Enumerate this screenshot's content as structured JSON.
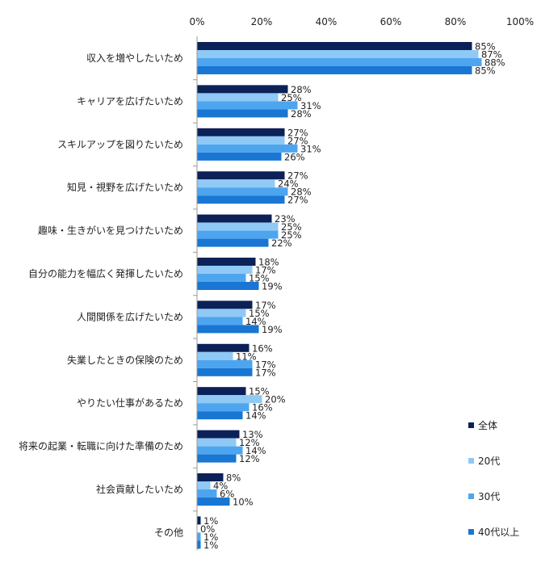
{
  "chart_data": {
    "type": "bar",
    "orientation": "horizontal",
    "title": "",
    "xlabel": "",
    "ylabel": "",
    "xlim": [
      0,
      100
    ],
    "x_ticks": [
      "0%",
      "20%",
      "40%",
      "60%",
      "80%",
      "100%"
    ],
    "x_tick_values": [
      0,
      20,
      40,
      60,
      80,
      100
    ],
    "value_suffix": "%",
    "grid": false,
    "legend_position": "bottom-right",
    "categories": [
      "収入を増やしたいため",
      "キャリアを広げたいため",
      "スキルアップを図りたいため",
      "知見・視野を広げたいため",
      "趣味・生きがいを見つけたいため",
      "自分の能力を幅広く発揮したいため",
      "人間関係を広げたいため",
      "失業したときの保険のため",
      "やりたい仕事があるため",
      "将来の起業・転職に向けた準備のため",
      "社会貢献したいため",
      "その他"
    ],
    "series": [
      {
        "name": "全体",
        "color": "#0b2157",
        "values": [
          85,
          28,
          27,
          27,
          23,
          18,
          17,
          16,
          15,
          13,
          8,
          1
        ]
      },
      {
        "name": "20代",
        "color": "#8fc9f5",
        "values": [
          87,
          25,
          27,
          24,
          25,
          17,
          15,
          11,
          20,
          12,
          4,
          0
        ]
      },
      {
        "name": "30代",
        "color": "#4ea5ef",
        "values": [
          88,
          31,
          31,
          28,
          25,
          15,
          14,
          17,
          16,
          14,
          6,
          1
        ]
      },
      {
        "name": "40代以上",
        "color": "#1976d2",
        "values": [
          85,
          28,
          26,
          27,
          22,
          19,
          19,
          17,
          14,
          12,
          10,
          1
        ]
      }
    ]
  }
}
